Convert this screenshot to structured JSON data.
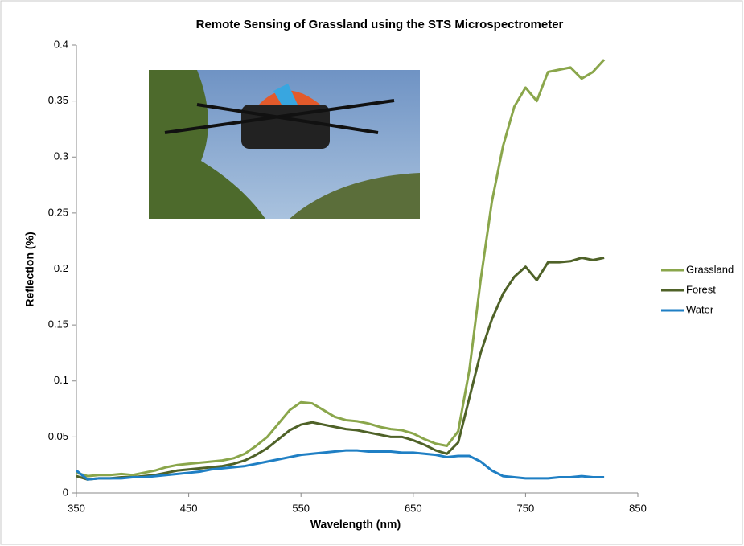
{
  "chart_data": {
    "type": "line",
    "title": "Remote Sensing of Grassland using the STS Microspectrometer",
    "x_label": "Wavelength (nm)",
    "y_label": "Reflection (%)",
    "x": [
      350,
      360,
      370,
      380,
      390,
      400,
      410,
      420,
      430,
      440,
      450,
      460,
      470,
      480,
      490,
      500,
      510,
      520,
      530,
      540,
      550,
      560,
      570,
      580,
      590,
      600,
      610,
      620,
      630,
      640,
      650,
      660,
      670,
      680,
      690,
      700,
      710,
      720,
      730,
      740,
      750,
      760,
      770,
      780,
      790,
      800,
      810,
      820
    ],
    "series": [
      {
        "name": "Grassland",
        "color": "#8aa64b",
        "values": [
          0.018,
          0.015,
          0.016,
          0.016,
          0.017,
          0.016,
          0.018,
          0.02,
          0.023,
          0.025,
          0.026,
          0.027,
          0.028,
          0.029,
          0.031,
          0.035,
          0.042,
          0.05,
          0.062,
          0.074,
          0.081,
          0.08,
          0.074,
          0.068,
          0.065,
          0.064,
          0.062,
          0.059,
          0.057,
          0.056,
          0.053,
          0.048,
          0.044,
          0.042,
          0.055,
          0.11,
          0.19,
          0.26,
          0.31,
          0.345,
          0.362,
          0.35,
          0.376,
          0.378,
          0.38,
          0.37,
          0.376,
          0.387
        ]
      },
      {
        "name": "Forest",
        "color": "#4f6228",
        "values": [
          0.015,
          0.012,
          0.013,
          0.013,
          0.014,
          0.014,
          0.015,
          0.016,
          0.018,
          0.02,
          0.021,
          0.022,
          0.023,
          0.024,
          0.026,
          0.029,
          0.034,
          0.04,
          0.048,
          0.056,
          0.061,
          0.063,
          0.061,
          0.059,
          0.057,
          0.056,
          0.054,
          0.052,
          0.05,
          0.05,
          0.047,
          0.043,
          0.038,
          0.035,
          0.045,
          0.085,
          0.125,
          0.155,
          0.178,
          0.193,
          0.202,
          0.19,
          0.206,
          0.206,
          0.207,
          0.21,
          0.208,
          0.21
        ]
      },
      {
        "name": "Water",
        "color": "#1f7fc4",
        "values": [
          0.02,
          0.012,
          0.013,
          0.013,
          0.013,
          0.014,
          0.014,
          0.015,
          0.016,
          0.017,
          0.018,
          0.019,
          0.021,
          0.022,
          0.023,
          0.024,
          0.026,
          0.028,
          0.03,
          0.032,
          0.034,
          0.035,
          0.036,
          0.037,
          0.038,
          0.038,
          0.037,
          0.037,
          0.037,
          0.036,
          0.036,
          0.035,
          0.034,
          0.032,
          0.033,
          0.033,
          0.028,
          0.02,
          0.015,
          0.014,
          0.013,
          0.013,
          0.013,
          0.014,
          0.014,
          0.015,
          0.014,
          0.014
        ]
      }
    ],
    "xlim": [
      350,
      850
    ],
    "xticks": [
      350,
      450,
      550,
      650,
      750,
      850
    ],
    "ylim": [
      0,
      0.4
    ],
    "yticks": [
      0,
      0.05,
      0.1,
      0.15,
      0.2,
      0.25,
      0.3,
      0.35,
      0.4
    ],
    "legend": "right",
    "grid": false
  }
}
